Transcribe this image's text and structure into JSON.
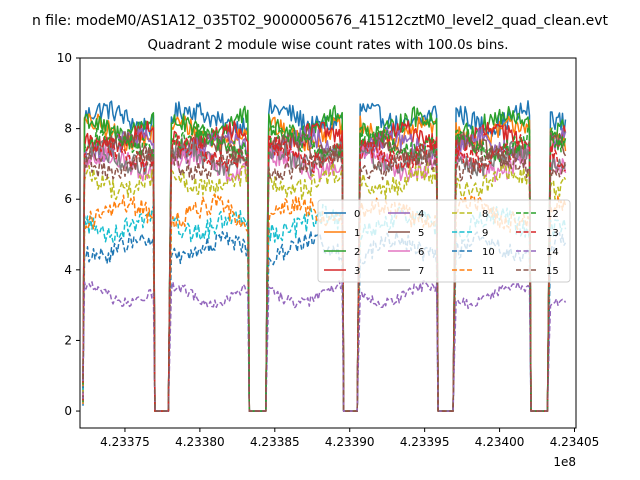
{
  "figure": {
    "suptitle": "n file: modeM0/AS1A12_035T02_9000005676_41512cztM0_level2_quad_clean.evt"
  },
  "chart_data": {
    "type": "line",
    "title": "Quadrant 2 module wise count rates with 100.0s bins.",
    "xlabel": "",
    "ylabel": "",
    "x_offset_label": "1e8",
    "xlim": [
      4.23372,
      4.234051
    ],
    "ylim": [
      -0.48,
      10.0
    ],
    "xticks": [
      4.23375,
      4.2338,
      4.23385,
      4.2339,
      4.23395,
      4.234,
      4.23405
    ],
    "xtick_labels": [
      "4.23375",
      "4.23380",
      "4.23385",
      "4.23390",
      "4.23395",
      "4.23400",
      "4.23405"
    ],
    "yticks": [
      0,
      2,
      4,
      6,
      8,
      10
    ],
    "ytick_labels": [
      "0",
      "2",
      "4",
      "6",
      "8",
      "10"
    ],
    "bin_seconds": 100,
    "x_start": 4.233722,
    "x_end": 4.234044,
    "on_segments": [
      [
        4.233722,
        4.233769
      ],
      [
        4.23378,
        4.233832
      ],
      [
        4.233845,
        4.233895
      ],
      [
        4.233906,
        4.233958
      ],
      [
        4.23397,
        4.23402
      ],
      [
        4.234033,
        4.234044
      ]
    ],
    "series": [
      {
        "name": "0",
        "mean": 8.3,
        "noise": 0.3,
        "style": "solid",
        "color": "#1f77b4"
      },
      {
        "name": "1",
        "mean": 7.9,
        "noise": 0.3,
        "style": "solid",
        "color": "#ff7f0e"
      },
      {
        "name": "2",
        "mean": 8.1,
        "noise": 0.3,
        "style": "solid",
        "color": "#2ca02c"
      },
      {
        "name": "3",
        "mean": 7.7,
        "noise": 0.3,
        "style": "solid",
        "color": "#d62728"
      },
      {
        "name": "4",
        "mean": 7.5,
        "noise": 0.3,
        "style": "solid",
        "color": "#9467bd"
      },
      {
        "name": "5",
        "mean": 7.4,
        "noise": 0.3,
        "style": "solid",
        "color": "#8c564b"
      },
      {
        "name": "6",
        "mean": 7.0,
        "noise": 0.3,
        "style": "solid",
        "color": "#e377c2"
      },
      {
        "name": "7",
        "mean": 7.2,
        "noise": 0.3,
        "style": "solid",
        "color": "#7f7f7f"
      },
      {
        "name": "8",
        "mean": 6.5,
        "noise": 0.3,
        "style": "dashed",
        "color": "#bcbd22"
      },
      {
        "name": "9",
        "mean": 5.3,
        "noise": 0.3,
        "style": "dashed",
        "color": "#17becf"
      },
      {
        "name": "10",
        "mean": 4.6,
        "noise": 0.25,
        "style": "dashed",
        "color": "#1f77b4"
      },
      {
        "name": "11",
        "mean": 5.6,
        "noise": 0.3,
        "style": "dashed",
        "color": "#ff7f0e"
      },
      {
        "name": "12",
        "mean": 7.6,
        "noise": 0.3,
        "style": "dashed",
        "color": "#2ca02c"
      },
      {
        "name": "13",
        "mean": 7.3,
        "noise": 0.3,
        "style": "dashed",
        "color": "#d62728"
      },
      {
        "name": "14",
        "mean": 3.3,
        "noise": 0.15,
        "style": "dashed",
        "color": "#9467bd"
      },
      {
        "name": "15",
        "mean": 7.0,
        "noise": 0.3,
        "style": "dashed",
        "color": "#8c564b"
      }
    ],
    "legend": {
      "location": "center-right",
      "columns": 4
    }
  }
}
